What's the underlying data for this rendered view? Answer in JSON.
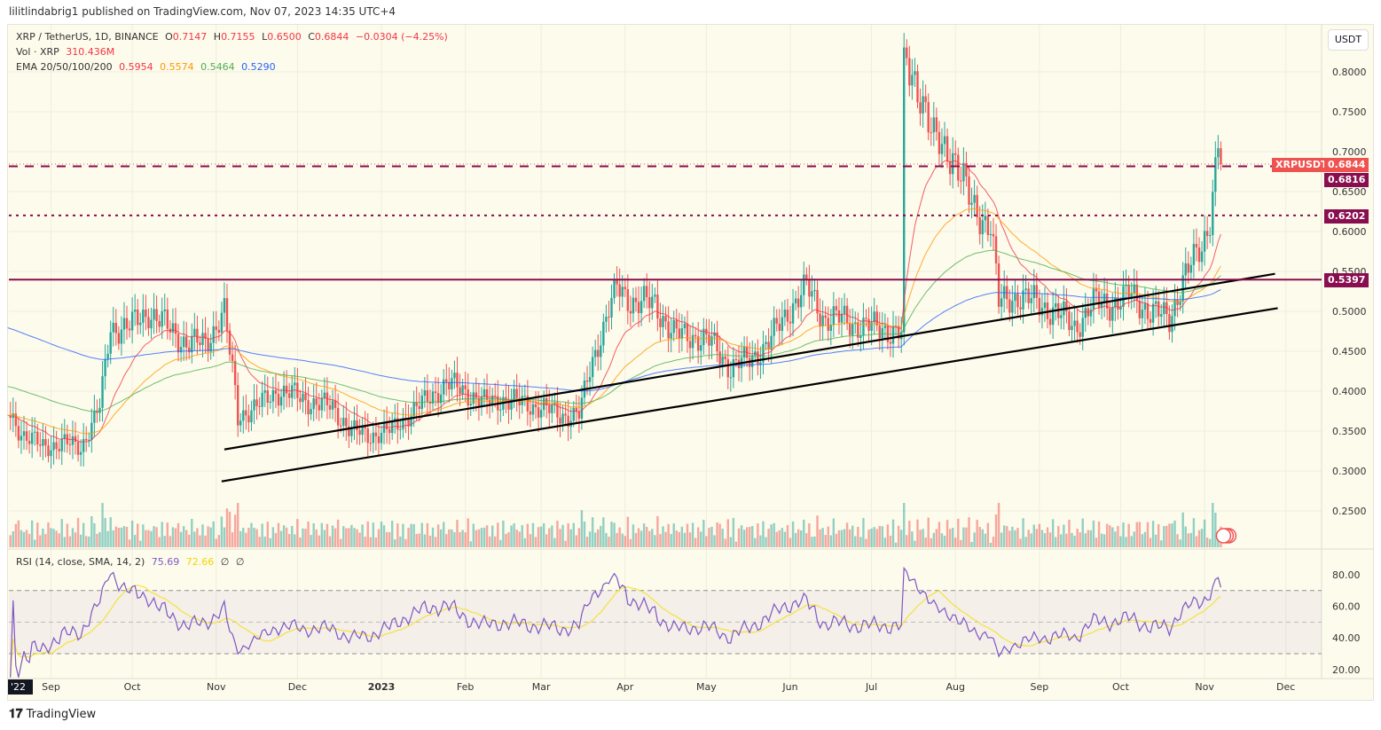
{
  "publisher": "lilitlindabrig1 published on TradingView.com, Nov 07, 2023 14:35 UTC+4",
  "legend": {
    "symbol": "XRP / TetherUS, 1D, BINANCE",
    "o_label": "O",
    "o": "0.7147",
    "h_label": "H",
    "h": "0.7155",
    "l_label": "L",
    "l": "0.6500",
    "c_label": "C",
    "c": "0.6844",
    "change": "−0.0304 (−4.25%)",
    "vol_label": "Vol · XRP",
    "vol": "310.436M",
    "ema_label": "EMA 20/50/100/200",
    "ema20": "0.5954",
    "ema50": "0.5574",
    "ema100": "0.5464",
    "ema200": "0.5290",
    "rsi_label": "RSI (14, close, SMA, 14, 2)",
    "rsi": "75.69",
    "rsi_sma": "72.66",
    "rsi_x1": "∅",
    "rsi_x2": "∅"
  },
  "currency_button": "USDT",
  "brand": "TradingView",
  "colors": {
    "up": "#26a69a",
    "down": "#ef5350",
    "ema20": "#f23645",
    "ema50": "#ff9800",
    "ema100": "#4caf50",
    "ema200": "#2962ff",
    "level": "#880e4f",
    "rsi": "#7e57c2",
    "rsi_sma": "#f5e23c",
    "bg": "#fdfbec"
  },
  "chart_data": {
    "type": "candlestick",
    "symbol": "XRPUSDT",
    "ylim": [
      0.21,
      0.86
    ],
    "y_ticks": [
      "0.8000",
      "0.7500",
      "0.7000",
      "0.6500",
      "0.6000",
      "0.5500",
      "0.5000",
      "0.4500",
      "0.4000",
      "0.3500",
      "0.3000",
      "0.2500"
    ],
    "x_ticks": [
      {
        "label": "'22",
        "date": "2022-08-16"
      },
      {
        "label": "Sep",
        "date": "2022-09-01"
      },
      {
        "label": "Oct",
        "date": "2022-10-01"
      },
      {
        "label": "Nov",
        "date": "2022-11-01"
      },
      {
        "label": "Dec",
        "date": "2022-12-01"
      },
      {
        "label": "2023",
        "date": "2023-01-01"
      },
      {
        "label": "Feb",
        "date": "2023-02-01"
      },
      {
        "label": "Mar",
        "date": "2023-03-01"
      },
      {
        "label": "Apr",
        "date": "2023-04-01"
      },
      {
        "label": "May",
        "date": "2023-05-01"
      },
      {
        "label": "Jun",
        "date": "2023-06-01"
      },
      {
        "label": "Jul",
        "date": "2023-07-01"
      },
      {
        "label": "Aug",
        "date": "2023-08-01"
      },
      {
        "label": "Sep",
        "date": "2023-09-01"
      },
      {
        "label": "Oct",
        "date": "2023-10-01"
      },
      {
        "label": "Nov",
        "date": "2023-11-01"
      },
      {
        "label": "Dec",
        "date": "2023-12-01"
      }
    ],
    "closes": [
      [
        "2022-08-16",
        0.373
      ],
      [
        "2022-08-22",
        0.345
      ],
      [
        "2022-08-29",
        0.33
      ],
      [
        "2022-09-05",
        0.335
      ],
      [
        "2022-09-12",
        0.33
      ],
      [
        "2022-09-19",
        0.38
      ],
      [
        "2022-09-23",
        0.48
      ],
      [
        "2022-09-30",
        0.48
      ],
      [
        "2022-10-07",
        0.5
      ],
      [
        "2022-10-14",
        0.48
      ],
      [
        "2022-10-21",
        0.46
      ],
      [
        "2022-10-28",
        0.46
      ],
      [
        "2022-11-04",
        0.5
      ],
      [
        "2022-11-09",
        0.37
      ],
      [
        "2022-11-16",
        0.38
      ],
      [
        "2022-11-23",
        0.4
      ],
      [
        "2022-11-30",
        0.395
      ],
      [
        "2022-12-07",
        0.385
      ],
      [
        "2022-12-14",
        0.38
      ],
      [
        "2022-12-21",
        0.35
      ],
      [
        "2022-12-28",
        0.345
      ],
      [
        "2023-01-04",
        0.35
      ],
      [
        "2023-01-11",
        0.37
      ],
      [
        "2023-01-18",
        0.39
      ],
      [
        "2023-01-25",
        0.41
      ],
      [
        "2023-02-01",
        0.4
      ],
      [
        "2023-02-08",
        0.385
      ],
      [
        "2023-02-15",
        0.39
      ],
      [
        "2023-02-22",
        0.385
      ],
      [
        "2023-03-01",
        0.38
      ],
      [
        "2023-03-08",
        0.37
      ],
      [
        "2023-03-15",
        0.37
      ],
      [
        "2023-03-20",
        0.44
      ],
      [
        "2023-03-29",
        0.53
      ],
      [
        "2023-04-05",
        0.51
      ],
      [
        "2023-04-12",
        0.51
      ],
      [
        "2023-04-19",
        0.47
      ],
      [
        "2023-04-26",
        0.47
      ],
      [
        "2023-05-03",
        0.46
      ],
      [
        "2023-05-10",
        0.43
      ],
      [
        "2023-05-17",
        0.44
      ],
      [
        "2023-05-24",
        0.46
      ],
      [
        "2023-05-31",
        0.5
      ],
      [
        "2023-06-07",
        0.53
      ],
      [
        "2023-06-14",
        0.49
      ],
      [
        "2023-06-21",
        0.49
      ],
      [
        "2023-06-28",
        0.48
      ],
      [
        "2023-07-05",
        0.48
      ],
      [
        "2023-07-12",
        0.47
      ],
      [
        "2023-07-13",
        0.81
      ],
      [
        "2023-07-19",
        0.78
      ],
      [
        "2023-07-24",
        0.71
      ],
      [
        "2023-07-31",
        0.7
      ],
      [
        "2023-08-07",
        0.63
      ],
      [
        "2023-08-14",
        0.61
      ],
      [
        "2023-08-17",
        0.51
      ],
      [
        "2023-08-24",
        0.52
      ],
      [
        "2023-08-31",
        0.51
      ],
      [
        "2023-09-07",
        0.5
      ],
      [
        "2023-09-14",
        0.48
      ],
      [
        "2023-09-21",
        0.51
      ],
      [
        "2023-09-28",
        0.51
      ],
      [
        "2023-10-05",
        0.52
      ],
      [
        "2023-10-12",
        0.5
      ],
      [
        "2023-10-19",
        0.49
      ],
      [
        "2023-10-24",
        0.54
      ],
      [
        "2023-10-31",
        0.58
      ],
      [
        "2023-11-03",
        0.62
      ],
      [
        "2023-11-06",
        0.71
      ],
      [
        "2023-11-07",
        0.6844
      ]
    ],
    "levels": [
      {
        "price": 0.6844,
        "label": "0.6844",
        "name": "XRPUSDT",
        "style": "dotted",
        "color": "#ef5350"
      },
      {
        "price": 0.6816,
        "label": "0.6816",
        "style": "dashed",
        "color": "#880e4f"
      },
      {
        "price": 0.6202,
        "label": "0.6202",
        "style": "dotted",
        "color": "#880e4f"
      },
      {
        "price": 0.5397,
        "label": "0.5397",
        "style": "solid",
        "color": "#880e4f"
      }
    ],
    "trendlines": [
      {
        "from": [
          "2022-11-04",
          0.327
        ],
        "to": [
          "2023-11-27",
          0.547
        ]
      },
      {
        "from": [
          "2022-11-03",
          0.287
        ],
        "to": [
          "2023-11-28",
          0.504
        ]
      }
    ],
    "rsi_ticks": [
      "80.00",
      "60.00",
      "40.00",
      "20.00"
    ],
    "rsi_bands": [
      70,
      50,
      30
    ]
  }
}
